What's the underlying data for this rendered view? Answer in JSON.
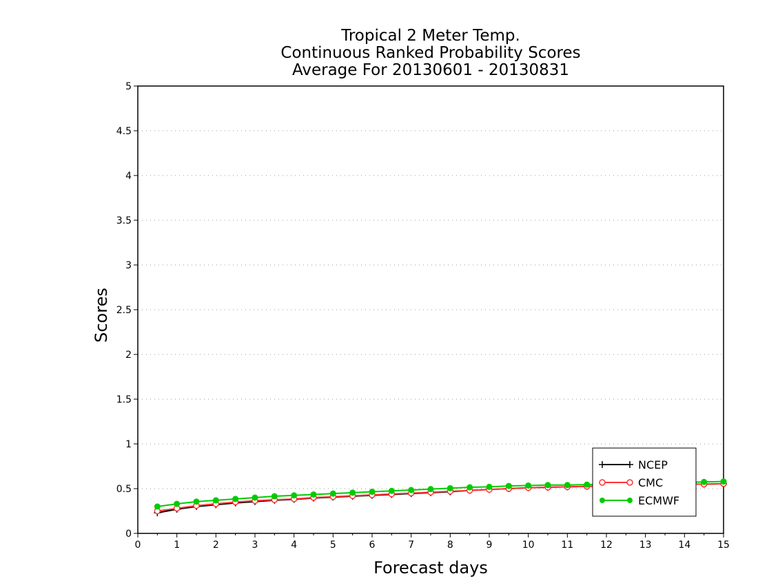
{
  "chart_data": {
    "type": "line",
    "title_lines": [
      "Tropical 2 Meter Temp.",
      "Continuous Ranked Probability Scores",
      "Average For 20130601 - 20130831"
    ],
    "xlabel": "Forecast days",
    "ylabel": "Scores",
    "xlim": [
      0,
      15
    ],
    "ylim": [
      0,
      5
    ],
    "x_ticks": [
      "0",
      "1",
      "2",
      "3",
      "4",
      "5",
      "6",
      "7",
      "8",
      "9",
      "10",
      "11",
      "12",
      "13",
      "14",
      "15"
    ],
    "y_ticks": [
      "0",
      "0.5",
      "1",
      "1.5",
      "2",
      "2.5",
      "3",
      "3.5",
      "4",
      "4.5",
      "5"
    ],
    "grid": "horizontal dotted",
    "legend_position": "bottom-right",
    "x": [
      0.5,
      1,
      1.5,
      2,
      2.5,
      3,
      3.5,
      4,
      4.5,
      5,
      5.5,
      6,
      6.5,
      7,
      7.5,
      8,
      8.5,
      9,
      9.5,
      10,
      10.5,
      11,
      11.5,
      12,
      12.5,
      13,
      13.5,
      14,
      14.5,
      15
    ],
    "series": [
      {
        "name": "NCEP",
        "color": "#000000",
        "marker": "plus",
        "values": [
          0.23,
          0.27,
          0.3,
          0.32,
          0.34,
          0.355,
          0.37,
          0.38,
          0.395,
          0.405,
          0.415,
          0.425,
          0.435,
          0.445,
          0.455,
          0.465,
          0.48,
          0.49,
          0.5,
          0.51,
          0.515,
          0.52,
          0.525,
          0.53,
          0.535,
          0.54,
          0.545,
          0.55,
          0.55,
          0.555
        ]
      },
      {
        "name": "CMC",
        "color": "#ff3333",
        "marker": "open-circle",
        "values": [
          0.25,
          0.28,
          0.31,
          0.33,
          0.35,
          0.365,
          0.375,
          0.385,
          0.4,
          0.41,
          0.42,
          0.43,
          0.44,
          0.45,
          0.46,
          0.47,
          0.48,
          0.49,
          0.5,
          0.51,
          0.515,
          0.52,
          0.525,
          0.53,
          0.535,
          0.54,
          0.545,
          0.55,
          0.55,
          0.555
        ]
      },
      {
        "name": "ECMWF",
        "color": "#00cc00",
        "marker": "filled-circle",
        "values": [
          0.3,
          0.33,
          0.355,
          0.37,
          0.385,
          0.4,
          0.415,
          0.425,
          0.435,
          0.445,
          0.455,
          0.465,
          0.475,
          0.485,
          0.495,
          0.505,
          0.515,
          0.52,
          0.53,
          0.535,
          0.54,
          0.54,
          0.545,
          0.55,
          0.555,
          0.56,
          0.565,
          0.57,
          0.575,
          0.58
        ]
      }
    ]
  }
}
